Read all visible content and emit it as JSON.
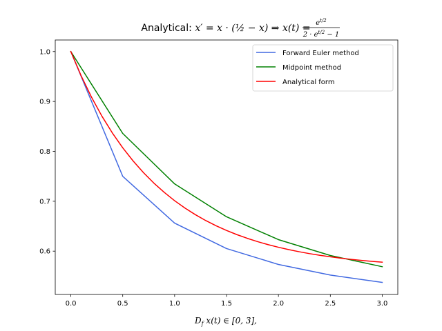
{
  "chart_data": {
    "type": "line",
    "title_prefix": "Analytical: ",
    "title_equation": "x′ = x · (½ − x) ⇒ x(t) = e^{t/2} / (2 · e^{t/2} − 1)",
    "title_parts": {
      "ode": "x′ = x · (",
      "half": "½",
      "ode_end": " − x) ⇒ x(t) = ",
      "numerator": "e",
      "numerator_exp": "t/2",
      "denominator": "2 · e",
      "denominator_exp": "t/2",
      "denominator_end": " − 1"
    },
    "xlabel": "D_f x(t) ∈ [0, 3],",
    "xlabel_parts": {
      "d": "D",
      "sub": "f",
      "rest": " x(t) ∈ [0, 3],"
    },
    "ylabel": "",
    "xlim": [
      -0.15,
      3.15
    ],
    "ylim": [
      0.5132,
      1.0232
    ],
    "xticks": [
      0.0,
      0.5,
      1.0,
      1.5,
      2.0,
      2.5,
      3.0
    ],
    "xtick_labels": [
      "0.0",
      "0.5",
      "1.0",
      "1.5",
      "2.0",
      "2.5",
      "3.0"
    ],
    "yticks": [
      0.6,
      0.7,
      0.8,
      0.9,
      1.0
    ],
    "ytick_labels": [
      "0.6",
      "0.7",
      "0.8",
      "0.9",
      "1.0"
    ],
    "grid": false,
    "legend_position": "top-right",
    "series": [
      {
        "name": "Forward Euler method",
        "color": "#4169e1",
        "x": [
          0.0,
          0.5,
          1.0,
          1.5,
          2.0,
          2.5,
          3.0
        ],
        "y": [
          1.0,
          0.75,
          0.6562,
          0.6052,
          0.5733,
          0.5521,
          0.5373
        ]
      },
      {
        "name": "Midpoint method",
        "color": "#008000",
        "x": [
          0.0,
          0.5,
          1.0,
          1.5,
          2.0,
          2.5,
          3.0
        ],
        "y": [
          1.0,
          0.8359,
          0.7348,
          0.6689,
          0.6231,
          0.5913,
          0.5688
        ]
      },
      {
        "name": "Analytical form",
        "color": "#ff0000",
        "x": [
          0.0,
          0.1,
          0.2,
          0.3,
          0.4,
          0.5,
          0.6,
          0.7,
          0.8,
          0.9,
          1.0,
          1.1,
          1.2,
          1.3,
          1.4,
          1.5,
          1.6,
          1.7,
          1.8,
          1.9,
          2.0,
          2.1,
          2.2,
          2.3,
          2.4,
          2.5,
          2.6,
          2.7,
          2.8,
          2.9,
          3.0
        ],
        "y": [
          1.0,
          0.9512,
          0.9083,
          0.8704,
          0.8369,
          0.8072,
          0.7808,
          0.7573,
          0.7364,
          0.7178,
          0.7011,
          0.6863,
          0.6731,
          0.6613,
          0.6508,
          0.6415,
          0.6331,
          0.6257,
          0.619,
          0.6131,
          0.6078,
          0.603,
          0.5988,
          0.595,
          0.5917,
          0.5887,
          0.586,
          0.5836,
          0.5815,
          0.5796,
          0.5779
        ]
      }
    ]
  }
}
